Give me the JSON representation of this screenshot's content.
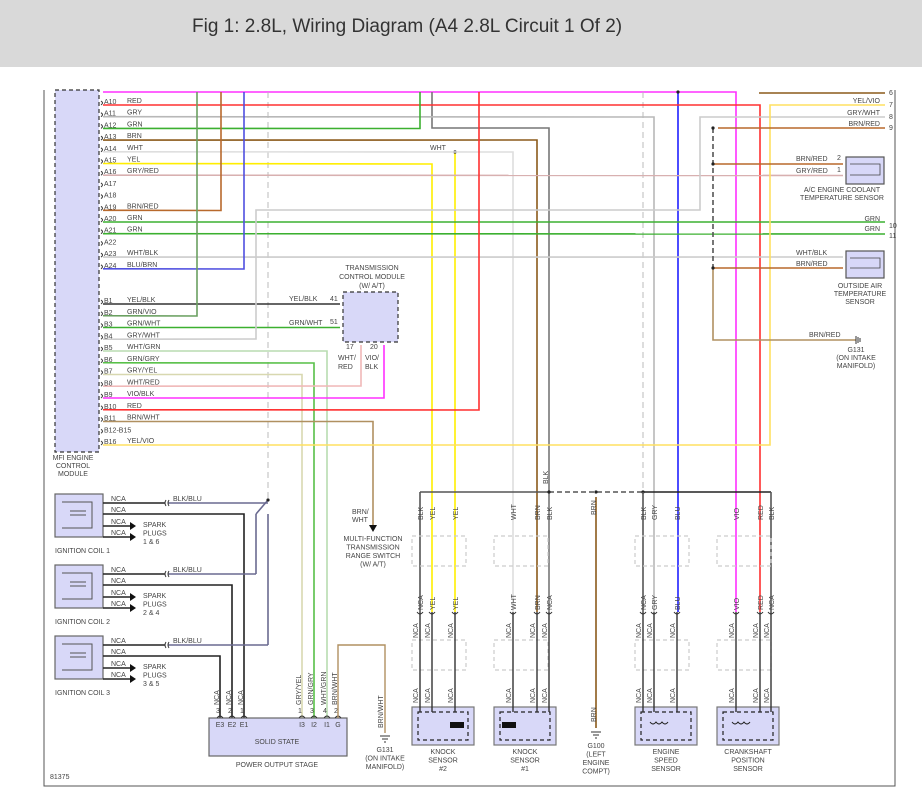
{
  "title": "Fig 1: 2.8L, Wiring Diagram (A4 2.8L Circuit 1 Of 2)",
  "figure_id": "81375",
  "wire_colors": {
    "RED": "#ff3030",
    "GRY": "#b8b8b8",
    "GRN": "#3cb030",
    "BRN": "#8b5a1a",
    "WHT": "#dedede",
    "YEL": "#ffee00",
    "GRY/RED": "#d8b0b0",
    "BRN/RED": "#b8692c",
    "BLU/BRN": "#4f4fe0",
    "BLU": "#2020ff",
    "BLK": "#555555",
    "VIO": "#ff30ff",
    "YEL/BLK": "#333333",
    "GRN/VIO": "#6aa060",
    "GRN/WHT": "#3cb030",
    "GRY/WHT": "#cccccc",
    "WHT/GRN": "#b8dcb0",
    "GRN/GRY": "#58c048",
    "GRY/YEL": "#d8d8b0",
    "WHT/RED": "#f0b8b8",
    "VIO/BLK": "#ff30ff",
    "BRN/WHT": "#b09060",
    "YEL/VIO": "#ffe060",
    "WHT/BLK": "#cccccc",
    "BLK/BLU": "#6a6a90",
    "NCA": "#333333",
    "TOP": "#ff30ff",
    "SPLICE": "#777777"
  },
  "ecm": {
    "label": [
      "MFI ENGINE",
      "CONTROL",
      "MODULE"
    ],
    "a_pins": [
      {
        "pin": "A10",
        "wire": "RED"
      },
      {
        "pin": "A11",
        "wire": "GRY"
      },
      {
        "pin": "A12",
        "wire": "GRN"
      },
      {
        "pin": "A13",
        "wire": "BRN"
      },
      {
        "pin": "A14",
        "wire": "WHT"
      },
      {
        "pin": "A15",
        "wire": "YEL"
      },
      {
        "pin": "A16",
        "wire": "GRY/RED"
      },
      {
        "pin": "A17",
        "wire": ""
      },
      {
        "pin": "A18",
        "wire": ""
      },
      {
        "pin": "A19",
        "wire": "BRN/RED"
      },
      {
        "pin": "A20",
        "wire": "GRN"
      },
      {
        "pin": "A21",
        "wire": "GRN"
      },
      {
        "pin": "A22",
        "wire": ""
      },
      {
        "pin": "A23",
        "wire": "WHT/BLK"
      },
      {
        "pin": "A24",
        "wire": "BLU/BRN"
      }
    ],
    "b_pins": [
      {
        "pin": "B1",
        "wire": "YEL/BLK"
      },
      {
        "pin": "B2",
        "wire": "GRN/VIO"
      },
      {
        "pin": "B3",
        "wire": "GRN/WHT"
      },
      {
        "pin": "B4",
        "wire": "GRY/WHT"
      },
      {
        "pin": "B5",
        "wire": "WHT/GRN"
      },
      {
        "pin": "B6",
        "wire": "GRN/GRY"
      },
      {
        "pin": "B7",
        "wire": "GRY/YEL"
      },
      {
        "pin": "B8",
        "wire": "WHT/RED"
      },
      {
        "pin": "B9",
        "wire": "VIO/BLK"
      },
      {
        "pin": "B10",
        "wire": "RED"
      },
      {
        "pin": "B11",
        "wire": "BRN/WHT"
      },
      {
        "pin": "B12-B15",
        "wire": ""
      },
      {
        "pin": "B16",
        "wire": "YEL/VIO"
      }
    ]
  },
  "tcm": {
    "label": [
      "TRANSMISSION",
      "CONTROL MODULE",
      "(W/ A/T)"
    ],
    "pins": [
      {
        "pin": "41",
        "wire": "YEL/BLK"
      },
      {
        "pin": "51",
        "wire": "GRN/WHT"
      },
      {
        "pin": "17",
        "wire": [
          "WHT/",
          "RED"
        ]
      },
      {
        "pin": "20",
        "wire": [
          "VIO/",
          "BLK"
        ]
      }
    ]
  },
  "splice_labels": {
    "wht": "WHT",
    "blk": "BLK"
  },
  "right_wires": [
    {
      "num": "6",
      "wire": ""
    },
    {
      "num": "7",
      "wire": "YEL/VIO"
    },
    {
      "num": "8",
      "wire": "GRY/WHT"
    },
    {
      "num": "9",
      "wire": "BRN/RED"
    },
    {
      "num": "10",
      "wire": "GRN"
    },
    {
      "num": "11",
      "wire": "GRN"
    }
  ],
  "ac_sensor": {
    "label": [
      "A/C ENGINE COOLANT",
      "TEMPERATURE SENSOR"
    ],
    "pins": [
      {
        "pin": "2",
        "wire": "BRN/RED"
      },
      {
        "pin": "1",
        "wire": "GRY/RED"
      }
    ]
  },
  "oat_sensor": {
    "label": [
      "OUTSIDE AIR",
      "TEMPERATURE",
      "SENSOR"
    ],
    "wires": [
      "WHT/BLK",
      "BRN/RED"
    ]
  },
  "g131_right": {
    "wire": "BRN/RED",
    "label": [
      "G131",
      "(ON INTAKE",
      "MANIFOLD)"
    ]
  },
  "mftrs": {
    "wire": [
      "BRN/",
      "WHT"
    ],
    "label": [
      "MULTI-FUNCTION",
      "TRANSMISSION",
      "RANGE SWITCH",
      "(W/ A/T)"
    ]
  },
  "coils": [
    {
      "label": "IGNITION COIL 1",
      "wires": [
        "NCA",
        "NCA",
        "NCA",
        "NCA"
      ],
      "feed": "BLK/BLU",
      "plugs": [
        "SPARK",
        "PLUGS",
        "1 & 6"
      ]
    },
    {
      "label": "IGNITION COIL 2",
      "wires": [
        "NCA",
        "NCA",
        "NCA",
        "NCA"
      ],
      "feed": "BLK/BLU",
      "plugs": [
        "SPARK",
        "PLUGS",
        "2 & 4"
      ]
    },
    {
      "label": "IGNITION COIL 3",
      "wires": [
        "NCA",
        "NCA",
        "NCA",
        "NCA"
      ],
      "feed": "BLK/BLU",
      "plugs": [
        "SPARK",
        "PLUGS",
        "3 & 5"
      ]
    }
  ],
  "pos": {
    "label": "POWER OUTPUT STAGE",
    "inner": "SOLID STATE",
    "pins": [
      {
        "name": "E3",
        "num": "3",
        "wire": "NCA"
      },
      {
        "name": "E2",
        "num": "2",
        "wire": "NCA"
      },
      {
        "name": "E1",
        "num": "1",
        "wire": "NCA"
      },
      {
        "name": "I3",
        "num": "1",
        "wire": "GRY/YEL"
      },
      {
        "name": "I2",
        "num": "3",
        "wire": "GRN/GRY"
      },
      {
        "name": "I1",
        "num": "4",
        "wire": "WHT/GRN"
      },
      {
        "name": "G",
        "num": "2",
        "wire": "BRN/WHT"
      }
    ]
  },
  "g131_bottom": {
    "wire": "BRN/WHT",
    "label": [
      "G131",
      "(ON INTAKE",
      "MANIFOLD)"
    ]
  },
  "g100": {
    "wire_top": "BRN",
    "wire_bottom": "BRN",
    "label": [
      "G100",
      "(LEFT",
      "ENGINE",
      "COMPT)"
    ]
  },
  "sensors": [
    {
      "label": [
        "KNOCK",
        "SENSOR",
        "#2"
      ],
      "wires": [
        {
          "top": "BLK",
          "mid": "NCA",
          "low": "NCA",
          "bottom": "NCA"
        },
        {
          "top": "YEL",
          "mid": "YEL",
          "low": "NCA",
          "bottom": "NCA"
        },
        {
          "top": "YEL",
          "mid": "YEL",
          "low": "NCA",
          "bottom": "NCA"
        }
      ]
    },
    {
      "label": [
        "KNOCK",
        "SENSOR",
        "#1"
      ],
      "wires": [
        {
          "top": "WHT",
          "mid": "WHT",
          "low": "NCA",
          "bottom": "NCA"
        },
        {
          "top": "BRN",
          "mid": "BRN",
          "low": "NCA",
          "bottom": "NCA"
        },
        {
          "top": "BLK",
          "mid": "NCA",
          "low": "NCA",
          "bottom": "NCA"
        }
      ]
    },
    {
      "label": [
        "ENGINE",
        "SPEED",
        "SENSOR"
      ],
      "wires": [
        {
          "top": "BLK",
          "mid": "NCA",
          "low": "NCA",
          "bottom": "NCA"
        },
        {
          "top": "GRY",
          "mid": "GRY",
          "low": "NCA",
          "bottom": "NCA"
        },
        {
          "top": "BLU",
          "mid": "BLU",
          "low": "NCA",
          "bottom": "NCA"
        }
      ]
    },
    {
      "label": [
        "CRANKSHAFT",
        "POSITION",
        "SENSOR"
      ],
      "wires": [
        {
          "top": "VIO",
          "mid": "VIO",
          "low": "NCA",
          "bottom": "NCA"
        },
        {
          "top": "RED",
          "mid": "RED",
          "low": "NCA",
          "bottom": "NCA"
        },
        {
          "top": "BLK",
          "mid": "NCA",
          "low": "NCA",
          "bottom": "NCA"
        }
      ]
    }
  ]
}
